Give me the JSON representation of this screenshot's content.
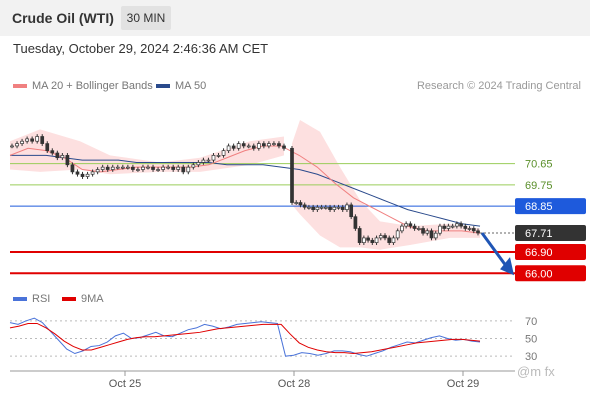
{
  "header": {
    "title": "Crude Oil (WTI)",
    "timeframe": "30 MIN"
  },
  "datetime": "Tuesday, October 29, 2024 2:46:36 AM CET",
  "legend": {
    "bb_label": "MA 20 + Bollinger Bands",
    "ma50_label": "MA 50",
    "rsi_label": "RSI",
    "ma9_label": "9MA"
  },
  "credit": "Research © 2024 Trading Central",
  "watermark": "@m  fx",
  "colors": {
    "ma20": "#f08080",
    "bands": "#fde0e0",
    "ma50": "#2a4a8c",
    "resistance": "#1e5adc",
    "support": "#e00000",
    "last_price": "#333333",
    "pivot_lines": "#9acd5a",
    "arrow": "#1f55b5",
    "rsi": "#4a73d9"
  },
  "chart_data": {
    "type": "candlestick",
    "title": "Crude Oil (WTI)",
    "x_ticks": [
      "Oct 25",
      "Oct 28",
      "Oct 29"
    ],
    "price_range": [
      65.8,
      72.5
    ],
    "levels": [
      {
        "value": 70.65,
        "label": "70.65",
        "kind": "pivot"
      },
      {
        "value": 69.75,
        "label": "69.75",
        "kind": "pivot"
      },
      {
        "value": 68.85,
        "label": "68.85",
        "kind": "resistance"
      },
      {
        "value": 67.71,
        "label": "67.71",
        "kind": "last"
      },
      {
        "value": 66.9,
        "label": "66.90",
        "kind": "support"
      },
      {
        "value": 66.0,
        "label": "66.00",
        "kind": "support"
      }
    ],
    "price_series": [
      71.4,
      71.5,
      71.6,
      71.7,
      71.6,
      71.8,
      71.5,
      71.2,
      71.1,
      70.9,
      71.0,
      70.6,
      70.3,
      70.2,
      70.1,
      70.2,
      70.3,
      70.4,
      70.5,
      70.4,
      70.5,
      70.5,
      70.5,
      70.5,
      70.4,
      70.4,
      70.5,
      70.5,
      70.4,
      70.4,
      70.5,
      70.5,
      70.4,
      70.5,
      70.3,
      70.5,
      70.6,
      70.7,
      70.8,
      70.8,
      71.0,
      71.0,
      71.2,
      71.4,
      71.3,
      71.5,
      71.4,
      71.4,
      71.3,
      71.5,
      71.4,
      71.5,
      71.5,
      71.4,
      71.3,
      69.0,
      69.0,
      68.9,
      68.8,
      68.8,
      68.7,
      68.8,
      68.8,
      68.8,
      68.7,
      68.8,
      68.8,
      68.7,
      68.9,
      68.4,
      67.9,
      67.3,
      67.5,
      67.4,
      67.3,
      67.5,
      67.6,
      67.5,
      67.3,
      67.5,
      67.8,
      68.0,
      68.1,
      68.0,
      67.9,
      67.9,
      67.7,
      67.8,
      67.5,
      67.7,
      68.0,
      67.9,
      68.0,
      68.0,
      68.1,
      68.0,
      67.9,
      67.9,
      67.8,
      67.71
    ],
    "ma50_series": [
      71.0,
      71.0,
      71.0,
      70.9,
      70.8,
      70.8,
      70.8,
      70.7,
      70.7,
      70.7,
      70.7,
      70.7,
      70.6,
      70.6,
      70.6,
      70.5,
      70.4,
      70.2,
      69.9,
      69.6,
      69.3,
      69.0,
      68.7,
      68.5,
      68.3,
      68.1,
      68.0
    ],
    "ma20_series": [
      71.0,
      71.3,
      71.2,
      70.9,
      70.4,
      70.3,
      70.4,
      70.5,
      70.5,
      70.5,
      70.5,
      70.6,
      70.9,
      71.2,
      71.4,
      71.4,
      71.0,
      70.5,
      69.8,
      69.2,
      68.8,
      68.4,
      68.0,
      67.8,
      67.8,
      67.8,
      67.7
    ],
    "rsi": {
      "axis_ticks": [
        70,
        50,
        30
      ],
      "range": [
        20,
        80
      ],
      "series": [
        68,
        66,
        70,
        73,
        68,
        58,
        48,
        38,
        33,
        36,
        41,
        42,
        46,
        53,
        56,
        50,
        51,
        54,
        57,
        53,
        52,
        56,
        60,
        62,
        66,
        64,
        61,
        63,
        66,
        67,
        68,
        69,
        68,
        67,
        30,
        31,
        34,
        33,
        31,
        33,
        36,
        36,
        35,
        32,
        30,
        33,
        36,
        40,
        43,
        46,
        45,
        48,
        51,
        53,
        50,
        48,
        49,
        47,
        46
      ],
      "ma9_series": [
        62,
        64,
        67,
        67,
        62,
        55,
        47,
        41,
        37,
        37,
        40,
        43,
        46,
        49,
        51,
        52,
        52,
        53,
        54,
        55,
        56,
        57,
        59,
        61,
        62,
        63,
        64,
        65,
        66,
        66,
        66,
        55,
        45,
        40,
        37,
        35,
        34,
        34,
        33,
        34,
        35,
        37,
        39,
        41,
        43,
        45,
        46,
        47,
        48,
        49,
        49,
        48,
        47
      ]
    }
  }
}
